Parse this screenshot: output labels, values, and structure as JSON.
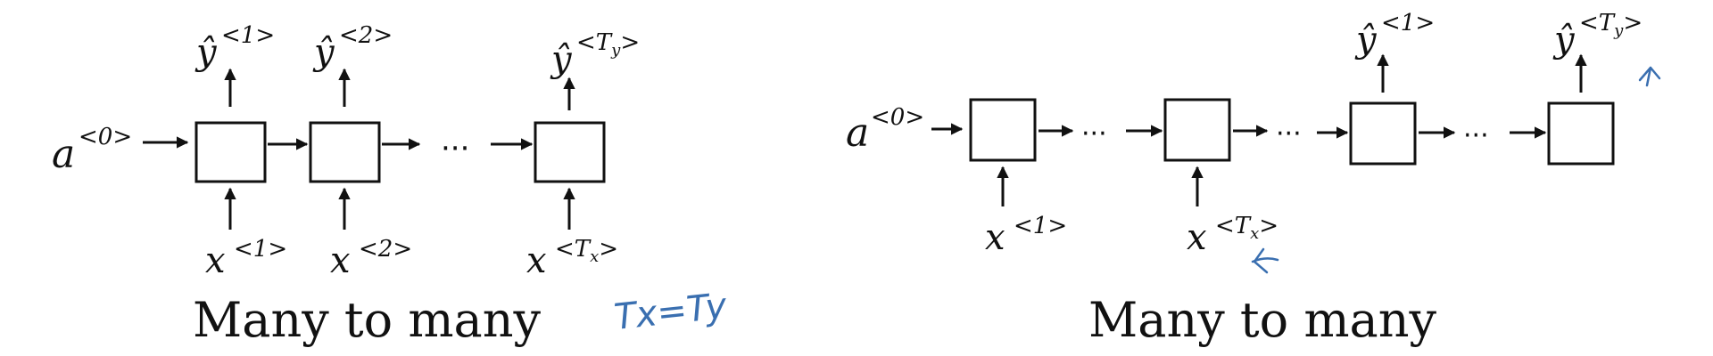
{
  "left_diagram": {
    "caption": "Many to many",
    "initial_state": {
      "base": "a",
      "sup": "<0>"
    },
    "outputs": [
      {
        "base": "ŷ",
        "sup": "<1>"
      },
      {
        "base": "ŷ",
        "sup": "<2>"
      },
      {
        "base": "ŷ",
        "sup": "<T",
        "sub": "y",
        "close": ">"
      }
    ],
    "inputs": [
      {
        "base": "x",
        "sup": "<1>"
      },
      {
        "base": "x",
        "sup": "<2>"
      },
      {
        "base": "x",
        "sup": "<T",
        "sub": "x",
        "close": ">"
      }
    ],
    "ellipsis": "···",
    "annotation": "Tx=Ty"
  },
  "right_diagram": {
    "caption": "Many to many",
    "initial_state": {
      "base": "a",
      "sup": "<0>"
    },
    "inputs": [
      {
        "base": "x",
        "sup": "<1>"
      },
      {
        "base": "x",
        "sup": "<T",
        "sub": "x",
        "close": ">"
      }
    ],
    "outputs": [
      {
        "base": "ŷ",
        "sup": "<1>"
      },
      {
        "base": "ŷ",
        "sup": "<T",
        "sub": "y",
        "close": ">"
      }
    ],
    "ellipsis": "···"
  },
  "colors": {
    "ink": "#111111",
    "annotation": "#3a6fb0"
  }
}
